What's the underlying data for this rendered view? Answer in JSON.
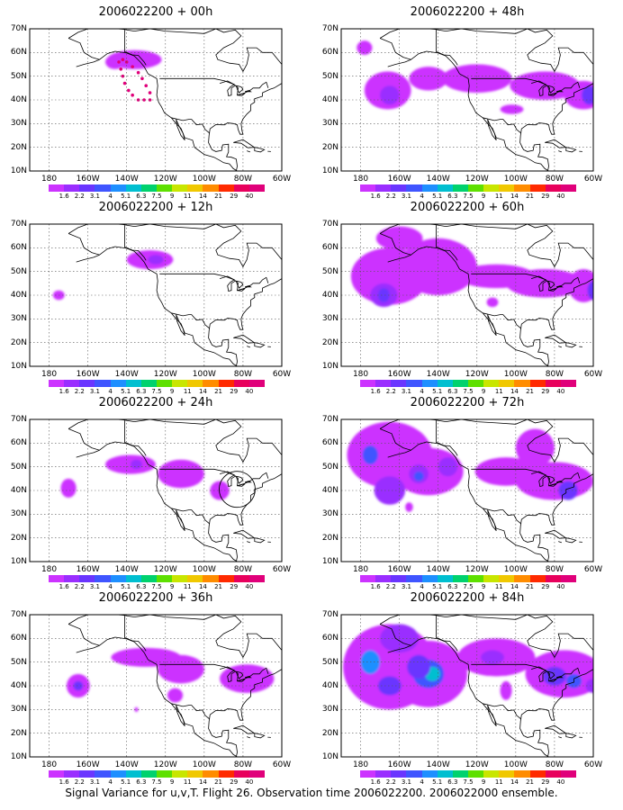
{
  "panels": [
    {
      "title": "2006022200 + 00h"
    },
    {
      "title": "2006022200 + 48h"
    },
    {
      "title": "2006022200 + 12h"
    },
    {
      "title": "2006022200 + 60h"
    },
    {
      "title": "2006022200 + 24h"
    },
    {
      "title": "2006022200 + 72h"
    },
    {
      "title": "2006022200 + 36h"
    },
    {
      "title": "2006022200 + 84h"
    }
  ],
  "axes": {
    "lat_labels": [
      "70N",
      "60N",
      "50N",
      "40N",
      "30N",
      "20N",
      "10N"
    ],
    "lon_labels": [
      "180",
      "160W",
      "140W",
      "120W",
      "100W",
      "80W",
      "60W"
    ]
  },
  "colorbar": {
    "labels": [
      "1.6",
      "2.2",
      "3.1",
      "4",
      "5.1",
      "6.3",
      "7.5",
      "9",
      "11",
      "14",
      "21",
      "29",
      "40"
    ],
    "colors": [
      "#cc33ff",
      "#9a2eff",
      "#6a35ff",
      "#3f55ff",
      "#1e8fff",
      "#00bfd0",
      "#00d26e",
      "#5ee000",
      "#c8e600",
      "#f0c800",
      "#ff8c00",
      "#ff2a00",
      "#e8005c",
      "#e0007a"
    ]
  },
  "caption": "Signal Variance for u,v,T. Flight 26. Observation time 2006022200. 2006022000 ensemble."
}
